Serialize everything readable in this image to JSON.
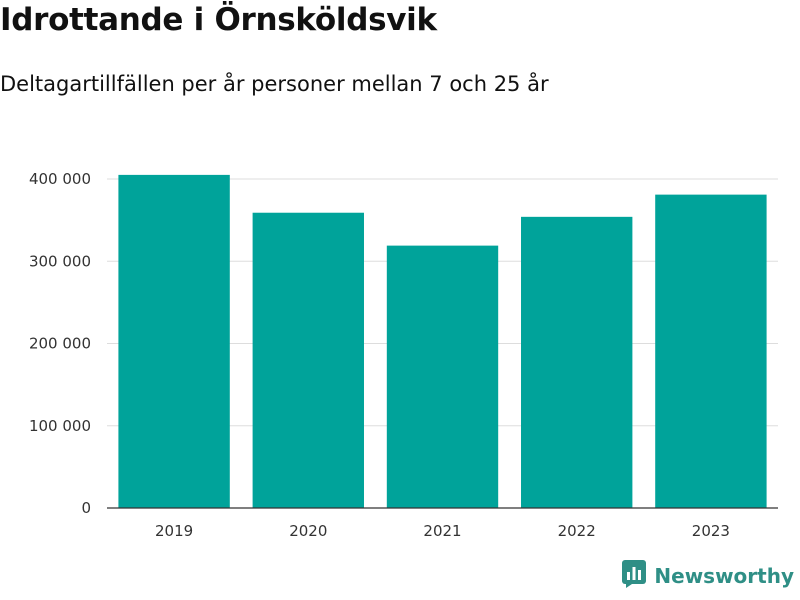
{
  "header": {
    "title": "Idrottande i Örnsköldsvik",
    "subtitle": "Deltagartillfällen per år personer mellan 7 och 25 år"
  },
  "brand": {
    "name": "Newsworthy"
  },
  "colors": {
    "bar": "#00a39a",
    "grid": "#dddddd",
    "axis": "#333333",
    "brand": "#2f8f86"
  },
  "chart_data": {
    "type": "bar",
    "title": "Idrottande i Örnsköldsvik",
    "subtitle": "Deltagartillfällen per år personer mellan 7 och 25 år",
    "categories": [
      "2019",
      "2020",
      "2021",
      "2022",
      "2023"
    ],
    "values": [
      405000,
      359000,
      319000,
      354000,
      381000
    ],
    "ylim": [
      0,
      400000
    ],
    "yticks": [
      0,
      100000,
      200000,
      300000,
      400000
    ],
    "ytick_labels": [
      "0",
      "100 000",
      "200 000",
      "300 000",
      "400 000"
    ],
    "grid": true,
    "xlabel": "",
    "ylabel": ""
  }
}
